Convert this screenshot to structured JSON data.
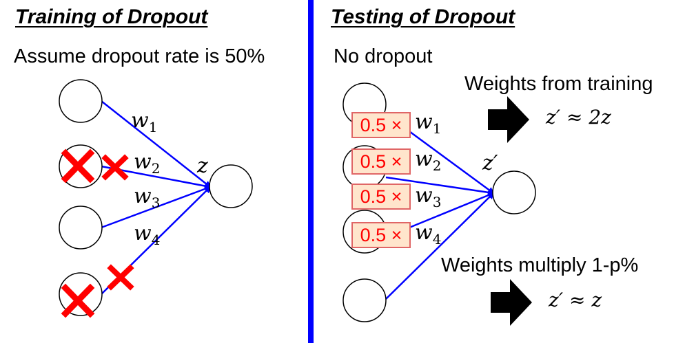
{
  "left": {
    "heading": "Training of Dropout",
    "assumption": "Assume dropout rate is 50%",
    "weights": [
      "w",
      "w",
      "w",
      "w"
    ],
    "weight_subscripts": [
      "1",
      "2",
      "3",
      "4"
    ],
    "output_label": "z"
  },
  "right": {
    "heading": "Testing of Dropout",
    "note": "No dropout",
    "factor": "0.5 ×",
    "weights": [
      "w",
      "w",
      "w",
      "w"
    ],
    "weight_subscripts": [
      "1",
      "2",
      "3",
      "4"
    ],
    "output_label": "z′",
    "upper_caption": "Weights from training",
    "upper_formula": "z′ ≈ 2z",
    "lower_caption": "Weights multiply 1-p%",
    "lower_formula": "z′ ≈ z"
  },
  "colors": {
    "divider": "#0000ff",
    "edge": "#0000ff",
    "cross": "#ff0000",
    "factor_fill": "#ffe5cc",
    "factor_border": "#e06666",
    "factor_text": "#ff0000"
  }
}
